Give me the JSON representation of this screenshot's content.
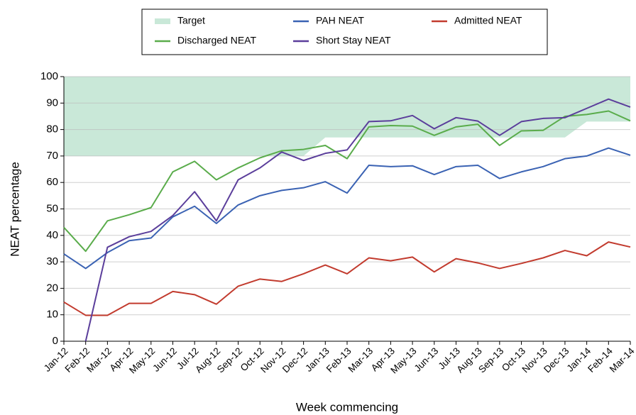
{
  "chart_data": {
    "type": "line",
    "x_label": "Week commencing",
    "y_label": "NEAT percentage",
    "categories": [
      "Jan-12",
      "Feb-12",
      "Mar-12",
      "Apr-12",
      "May-12",
      "Jun-12",
      "Jul-12",
      "Aug-12",
      "Sep-12",
      "Oct-12",
      "Nov-12",
      "Dec-12",
      "Jan-13",
      "Feb-13",
      "Mar-13",
      "Apr-13",
      "May-13",
      "Jun-13",
      "Jul-13",
      "Aug-13",
      "Sep-13",
      "Oct-13",
      "Nov-13",
      "Dec-13",
      "Jan-14",
      "Feb-14",
      "Mar-14"
    ],
    "ylim": [
      0,
      100
    ],
    "yticks": [
      0,
      10,
      20,
      30,
      40,
      50,
      60,
      70,
      80,
      90,
      100
    ],
    "grid": true,
    "series": [
      {
        "name": "Target",
        "kind": "area",
        "color": "#c9e8d8",
        "values": [
          70,
          70,
          70,
          70,
          70,
          70,
          70,
          70,
          70,
          70,
          70,
          70,
          77,
          77,
          77,
          77,
          77,
          77,
          77,
          77,
          77,
          77,
          77,
          77,
          83,
          83,
          83
        ]
      },
      {
        "name": "PAH NEAT",
        "color": "#3a62b3",
        "values": [
          33,
          27.5,
          33.5,
          38,
          39,
          47,
          51,
          44.5,
          51.5,
          55,
          57,
          58,
          60.3,
          56,
          66.5,
          66,
          66.3,
          63,
          66,
          66.5,
          61.5,
          64,
          66,
          69,
          70,
          73,
          70.3
        ]
      },
      {
        "name": "Admitted NEAT",
        "color": "#c23b2e",
        "values": [
          14.8,
          9.8,
          9.8,
          14.3,
          14.3,
          18.8,
          17.6,
          14,
          20.8,
          23.5,
          22.6,
          25.5,
          28.8,
          25.5,
          31.5,
          30.4,
          31.8,
          26.2,
          31.2,
          29.6,
          27.5,
          29.4,
          31.5,
          34.3,
          32.3,
          37.5,
          35.6
        ]
      },
      {
        "name": "Discharged NEAT",
        "color": "#5aac4b",
        "values": [
          43,
          34,
          45.5,
          47.8,
          50.5,
          64,
          68,
          61,
          65.5,
          69.3,
          72,
          72.5,
          74,
          69,
          81,
          81.5,
          81.3,
          77.8,
          81,
          82,
          74,
          79.5,
          79.7,
          85,
          85.7,
          87,
          83.3
        ]
      },
      {
        "name": "Short Stay NEAT",
        "color": "#5b3e9b",
        "values": [
          null,
          0,
          35.5,
          39.5,
          41.5,
          47.5,
          56.5,
          45.5,
          61,
          65.5,
          71.5,
          68.3,
          71,
          72.3,
          83,
          83.3,
          85.3,
          80.3,
          84.5,
          83.2,
          77.8,
          83,
          84.2,
          84.5,
          88,
          91.5,
          88.5
        ]
      }
    ]
  }
}
